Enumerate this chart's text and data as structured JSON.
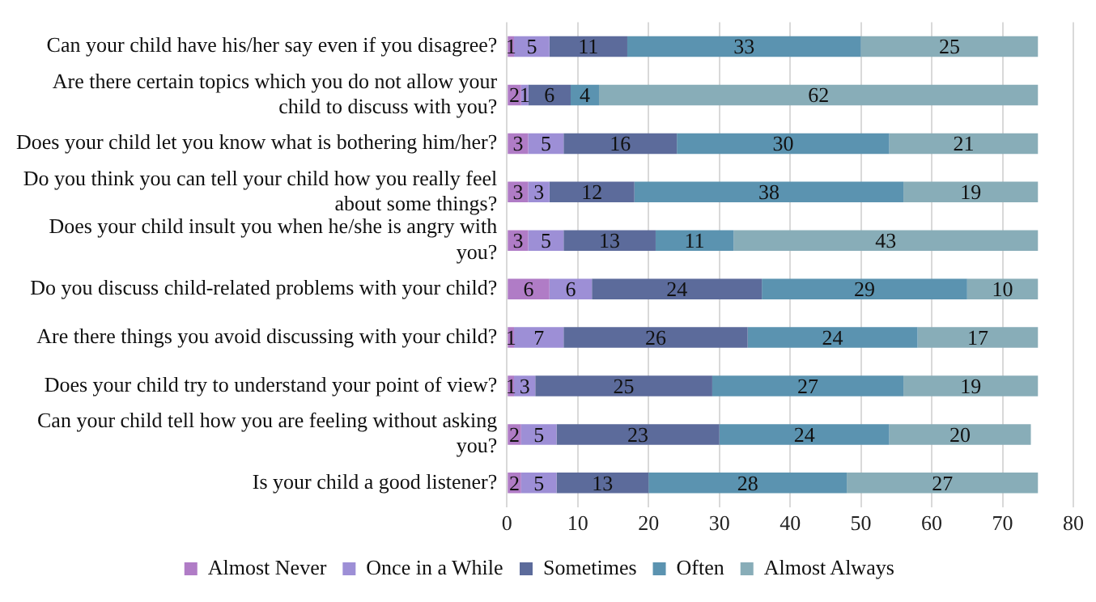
{
  "chart_data": {
    "type": "bar",
    "orientation": "horizontal",
    "stacked": true,
    "categories": [
      "Can your child have his/her say even if you disagree?",
      "Are there certain topics which you do not allow your child to discuss with you?",
      "Does your child let you know what is bothering him/her?",
      "Do you think you can tell your child how you really feel about some things?",
      "Does your child insult you when he/she is angry with you?",
      "Do you discuss child-related problems with your child?",
      "Are there things you avoid discussing with your child?",
      "Does your child try to understand your point of view?",
      "Can your child tell how you are feeling without asking you?",
      "Is your child a good listener?"
    ],
    "series": [
      {
        "name": "Almost Never",
        "color": "#b07cc6",
        "values": [
          1,
          2,
          3,
          3,
          3,
          6,
          1,
          1,
          2,
          2
        ]
      },
      {
        "name": "Once in a While",
        "color": "#9d8fd6",
        "values": [
          5,
          1,
          5,
          3,
          5,
          6,
          7,
          3,
          5,
          5
        ]
      },
      {
        "name": "Sometimes",
        "color": "#5c6b9b",
        "values": [
          11,
          6,
          16,
          12,
          13,
          24,
          26,
          25,
          23,
          13
        ]
      },
      {
        "name": "Often",
        "color": "#5b93b0",
        "values": [
          33,
          4,
          30,
          38,
          11,
          29,
          24,
          27,
          24,
          28
        ]
      },
      {
        "name": "Almost Always",
        "color": "#88adb8",
        "values": [
          25,
          62,
          21,
          19,
          43,
          10,
          17,
          19,
          20,
          27
        ]
      }
    ],
    "xlim": [
      0,
      80
    ],
    "xticks": [
      0,
      10,
      20,
      30,
      40,
      50,
      60,
      70,
      80
    ],
    "grid": "x",
    "legend": "bottom",
    "data_labels": true
  }
}
